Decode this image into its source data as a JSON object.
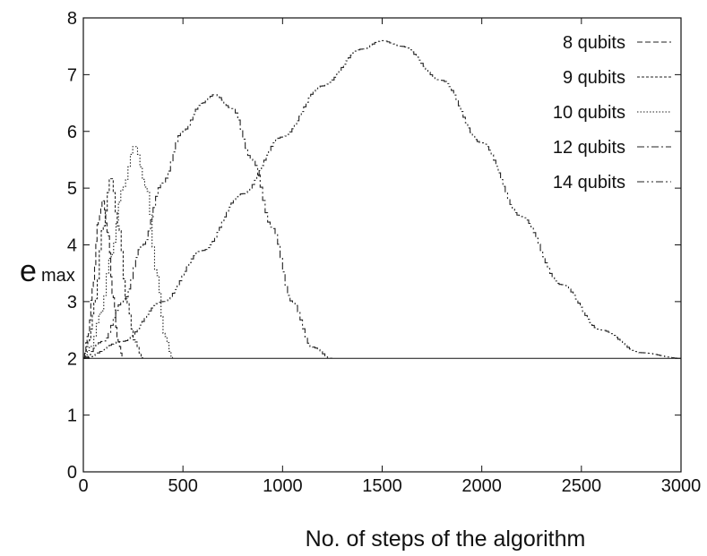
{
  "chart_data": {
    "type": "line",
    "title": "",
    "xlabel": "No. of steps of the algorithm",
    "ylabel": "e",
    "ylabel_subscript": "max",
    "xlim": [
      0,
      3000
    ],
    "ylim": [
      0,
      8
    ],
    "xticks": [
      0,
      500,
      1000,
      1500,
      2000,
      2500,
      3000
    ],
    "yticks": [
      0,
      1,
      2,
      3,
      4,
      5,
      6,
      7,
      8
    ],
    "grid": false,
    "legend_position": "top-right",
    "baseline": 2,
    "series": [
      {
        "name": "8 qubits",
        "x": [
          0,
          25,
          50,
          75,
          100,
          125,
          150,
          175,
          200
        ],
        "y": [
          2.0,
          2.4,
          3.3,
          4.4,
          4.8,
          4.2,
          3.1,
          2.3,
          2.0
        ],
        "dash": "6,3"
      },
      {
        "name": "9 qubits",
        "x": [
          0,
          30,
          60,
          100,
          140,
          180,
          220,
          260,
          300
        ],
        "y": [
          2.0,
          2.3,
          3.0,
          4.3,
          5.2,
          4.3,
          3.0,
          2.3,
          2.0
        ],
        "dash": "3,2"
      },
      {
        "name": "10 qubits",
        "x": [
          0,
          40,
          90,
          140,
          200,
          260,
          320,
          370,
          410,
          450
        ],
        "y": [
          2.0,
          2.2,
          2.8,
          3.8,
          5.0,
          5.75,
          5.0,
          3.5,
          2.4,
          2.0
        ],
        "dash": "1.5,2"
      },
      {
        "name": "12 qubits",
        "x": [
          0,
          100,
          200,
          300,
          400,
          500,
          600,
          660,
          750,
          850,
          950,
          1050,
          1150,
          1250
        ],
        "y": [
          2.0,
          2.3,
          3.0,
          4.0,
          5.1,
          6.0,
          6.5,
          6.65,
          6.4,
          5.5,
          4.3,
          3.0,
          2.2,
          2.0
        ],
        "dash": "8,3,2,3"
      },
      {
        "name": "14 qubits",
        "x": [
          0,
          200,
          400,
          600,
          800,
          1000,
          1200,
          1400,
          1500,
          1600,
          1800,
          2000,
          2200,
          2400,
          2600,
          2800,
          3000
        ],
        "y": [
          2.0,
          2.3,
          3.0,
          3.9,
          4.9,
          5.9,
          6.8,
          7.45,
          7.6,
          7.5,
          6.9,
          5.8,
          4.5,
          3.3,
          2.5,
          2.1,
          2.0
        ],
        "dash": "8,3,2,3,2,3"
      }
    ]
  }
}
